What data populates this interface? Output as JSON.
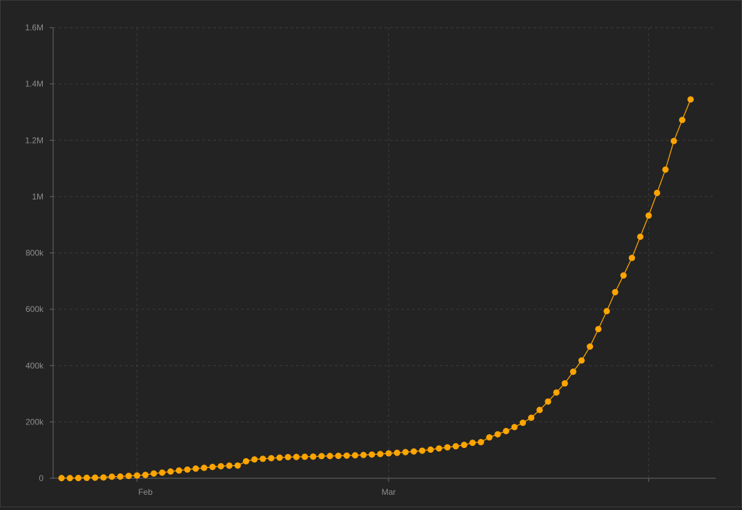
{
  "chart_data": {
    "type": "line",
    "title": "",
    "xlabel": "",
    "ylabel": "",
    "x_axis": {
      "kind": "date",
      "range": [
        "2020-01-21",
        "2020-04-09"
      ],
      "tick_labels": [
        {
          "date": "2020-02-01",
          "label": "Feb"
        },
        {
          "date": "2020-03-01",
          "label": "Mar"
        }
      ],
      "gridline_dates": [
        "2020-01-31",
        "2020-03-01",
        "2020-04-01"
      ]
    },
    "y_axis": {
      "range": [
        0,
        1600000
      ],
      "ticks": [
        {
          "value": 0,
          "label": "0"
        },
        {
          "value": 200000,
          "label": "200k"
        },
        {
          "value": 400000,
          "label": "400k"
        },
        {
          "value": 600000,
          "label": "600k"
        },
        {
          "value": 800000,
          "label": "800k"
        },
        {
          "value": 1000000,
          "label": "1M"
        },
        {
          "value": 1200000,
          "label": "1.2M"
        },
        {
          "value": 1400000,
          "label": "1.4M"
        },
        {
          "value": 1600000,
          "label": "1.6M"
        }
      ]
    },
    "grid": true,
    "legend": "none",
    "colors": {
      "background": "#232323",
      "series": "#ffa500",
      "grid": "#3c3c3c",
      "axis": "#6a6a6a",
      "tick_text": "#8e8e8e"
    },
    "series": [
      {
        "name": "",
        "start_date": "2020-01-22",
        "interval_days": 1,
        "values": [
          555,
          654,
          941,
          1434,
          2118,
          2927,
          5578,
          6166,
          8234,
          9927,
          12038,
          16787,
          19881,
          23892,
          27635,
          30794,
          34391,
          37120,
          40150,
          42762,
          44802,
          45221,
          60368,
          66885,
          69030,
          71224,
          73258,
          75136,
          75639,
          76197,
          76819,
          78572,
          78958,
          79561,
          80406,
          81388,
          82746,
          84112,
          86011,
          88369,
          90306,
          92840,
          95120,
          97886,
          101801,
          105847,
          109821,
          113590,
          118620,
          125875,
          128343,
          145193,
          156097,
          167449,
          181546,
          197102,
          214821,
          242570,
          272208,
          304507,
          336953,
          378235,
          418045,
          467653,
          529591,
          593291,
          660706,
          720117,
          782365,
          857487,
          932605,
          1013157,
          1095917,
          1197405,
          1272115,
          1345048
        ]
      }
    ]
  }
}
